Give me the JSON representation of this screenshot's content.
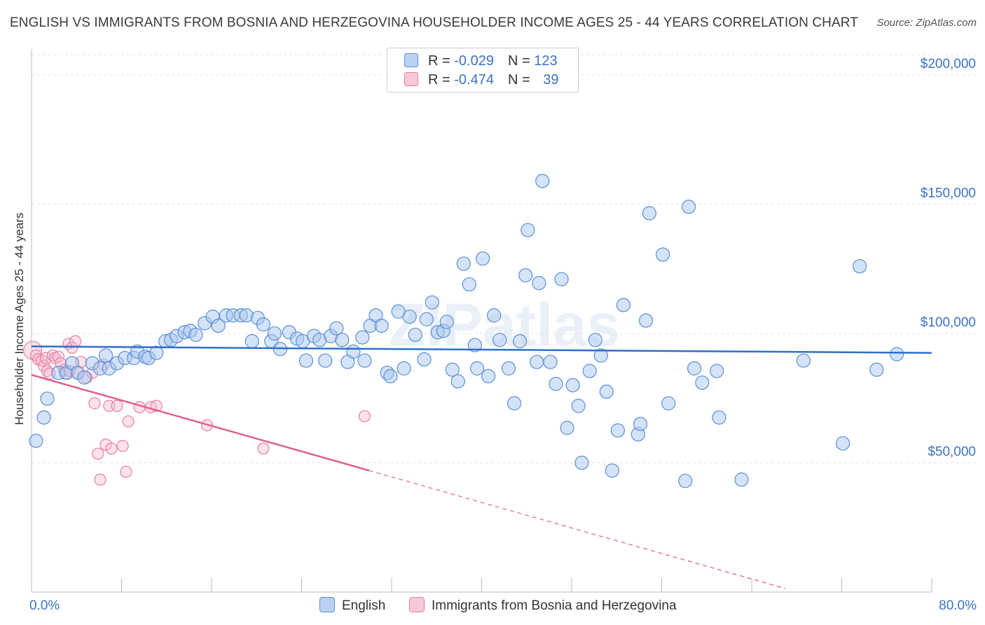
{
  "title": "ENGLISH VS IMMIGRANTS FROM BOSNIA AND HERZEGOVINA HOUSEHOLDER INCOME AGES 25 - 44 YEARS CORRELATION CHART",
  "source": "Source: ZipAtlas.com",
  "watermark": "ZIPatlas",
  "legend": {
    "rows": [
      {
        "r_label": "R = ",
        "r_value": "-0.029",
        "n_label": "N = ",
        "n_value": "123"
      },
      {
        "r_label": "R = ",
        "r_value": "-0.474",
        "n_label": "N = ",
        "n_value": "39"
      }
    ]
  },
  "bottom_legend": [
    "English",
    "Immigrants from Bosnia and Herzegovina"
  ],
  "colors": {
    "english_fill": "#a9c8f0",
    "english_stroke": "#5a8fd6",
    "english_line": "#2f6fcc",
    "bosnia_fill": "#f7bfd2",
    "bosnia_stroke": "#e77fa2",
    "bosnia_line": "#e0608e",
    "tick_label": "#3b73c7",
    "grid": "#e3e3e3"
  },
  "chart_data": {
    "type": "scatter",
    "title": "ENGLISH VS IMMIGRANTS FROM BOSNIA AND HERZEGOVINA HOUSEHOLDER INCOME AGES 25 - 44 YEARS CORRELATION CHART",
    "xlabel": "",
    "ylabel": "Householder Income Ages 25 - 44 years",
    "xlim": [
      0,
      80
    ],
    "ylim": [
      0,
      210000
    ],
    "x_tick_labels": [
      "0.0%",
      "80.0%"
    ],
    "y_ticks": [
      50000,
      100000,
      150000,
      200000
    ],
    "y_tick_labels": [
      "$50,000",
      "$100,000",
      "$150,000",
      "$200,000"
    ],
    "grid": true,
    "legend_position": "top-center",
    "series": [
      {
        "name": "English",
        "points": [
          [
            0.4,
            58500
          ],
          [
            1.1,
            67500
          ],
          [
            1.4,
            74800
          ],
          [
            2.4,
            84800
          ],
          [
            3.1,
            84800
          ],
          [
            3.6,
            88500
          ],
          [
            4.1,
            84800
          ],
          [
            4.7,
            83000
          ],
          [
            5.4,
            88500
          ],
          [
            6.1,
            86500
          ],
          [
            6.6,
            91500
          ],
          [
            6.9,
            86500
          ],
          [
            7.6,
            88500
          ],
          [
            8.3,
            90500
          ],
          [
            9.1,
            90500
          ],
          [
            9.4,
            93000
          ],
          [
            10.1,
            91000
          ],
          [
            10.4,
            90500
          ],
          [
            11.1,
            92500
          ],
          [
            11.9,
            97000
          ],
          [
            12.4,
            97500
          ],
          [
            12.9,
            99000
          ],
          [
            13.6,
            100500
          ],
          [
            14.1,
            101000
          ],
          [
            14.6,
            99500
          ],
          [
            15.4,
            104000
          ],
          [
            16.1,
            106500
          ],
          [
            16.6,
            103000
          ],
          [
            17.3,
            107000
          ],
          [
            17.9,
            107000
          ],
          [
            18.6,
            107000
          ],
          [
            19.1,
            107000
          ],
          [
            19.6,
            97000
          ],
          [
            20.1,
            106000
          ],
          [
            20.6,
            103500
          ],
          [
            21.3,
            97000
          ],
          [
            21.6,
            100000
          ],
          [
            22.1,
            94000
          ],
          [
            22.9,
            100500
          ],
          [
            23.6,
            98000
          ],
          [
            24.1,
            97000
          ],
          [
            24.4,
            89500
          ],
          [
            25.1,
            99000
          ],
          [
            25.6,
            97500
          ],
          [
            26.1,
            89500
          ],
          [
            26.6,
            99000
          ],
          [
            27.1,
            102000
          ],
          [
            27.6,
            97500
          ],
          [
            28.1,
            89000
          ],
          [
            28.6,
            93000
          ],
          [
            29.4,
            98500
          ],
          [
            29.6,
            89500
          ],
          [
            30.1,
            103000
          ],
          [
            30.6,
            107000
          ],
          [
            31.1,
            103000
          ],
          [
            31.6,
            84800
          ],
          [
            31.9,
            83500
          ],
          [
            32.6,
            108500
          ],
          [
            33.1,
            86500
          ],
          [
            33.6,
            106500
          ],
          [
            34.1,
            99500
          ],
          [
            34.9,
            90000
          ],
          [
            35.1,
            105500
          ],
          [
            35.6,
            112000
          ],
          [
            36.1,
            100500
          ],
          [
            36.6,
            101000
          ],
          [
            36.9,
            104500
          ],
          [
            37.4,
            86000
          ],
          [
            37.9,
            81500
          ],
          [
            38.4,
            127000
          ],
          [
            38.9,
            119000
          ],
          [
            39.4,
            95500
          ],
          [
            39.6,
            86500
          ],
          [
            40.1,
            129000
          ],
          [
            40.6,
            83500
          ],
          [
            41.1,
            107000
          ],
          [
            41.6,
            97500
          ],
          [
            42.4,
            86500
          ],
          [
            42.9,
            73000
          ],
          [
            43.4,
            97000
          ],
          [
            43.9,
            122500
          ],
          [
            44.1,
            140000
          ],
          [
            44.9,
            89000
          ],
          [
            45.1,
            119500
          ],
          [
            45.4,
            159000
          ],
          [
            46.1,
            89000
          ],
          [
            46.6,
            80500
          ],
          [
            47.1,
            121000
          ],
          [
            47.6,
            63500
          ],
          [
            48.1,
            80000
          ],
          [
            48.6,
            72000
          ],
          [
            48.9,
            50000
          ],
          [
            49.6,
            85500
          ],
          [
            50.1,
            97500
          ],
          [
            50.6,
            91500
          ],
          [
            51.1,
            77500
          ],
          [
            51.6,
            47000
          ],
          [
            52.1,
            62500
          ],
          [
            52.6,
            111000
          ],
          [
            53.9,
            61000
          ],
          [
            54.1,
            65000
          ],
          [
            54.6,
            105000
          ],
          [
            54.9,
            146500
          ],
          [
            56.1,
            130500
          ],
          [
            56.6,
            73000
          ],
          [
            58.1,
            43000
          ],
          [
            58.4,
            149000
          ],
          [
            58.9,
            86500
          ],
          [
            59.6,
            81000
          ],
          [
            60.9,
            85500
          ],
          [
            61.1,
            67500
          ],
          [
            63.1,
            43500
          ],
          [
            68.6,
            89500
          ],
          [
            72.1,
            57500
          ],
          [
            73.6,
            126000
          ],
          [
            75.1,
            86000
          ],
          [
            76.9,
            92000
          ]
        ]
      },
      {
        "name": "Immigrants from Bosnia and Herzegovina",
        "points": [
          [
            0.1,
            93500
          ],
          [
            0.4,
            91500
          ],
          [
            0.6,
            90000
          ],
          [
            0.9,
            89500
          ],
          [
            1.1,
            87500
          ],
          [
            1.3,
            90500
          ],
          [
            1.4,
            85500
          ],
          [
            1.6,
            84500
          ],
          [
            1.9,
            91500
          ],
          [
            2.1,
            90500
          ],
          [
            2.4,
            91000
          ],
          [
            2.6,
            88500
          ],
          [
            2.9,
            86000
          ],
          [
            3.1,
            84500
          ],
          [
            3.3,
            96000
          ],
          [
            3.4,
            85500
          ],
          [
            3.6,
            94500
          ],
          [
            3.9,
            97000
          ],
          [
            4.1,
            85000
          ],
          [
            4.4,
            89000
          ],
          [
            4.9,
            83000
          ],
          [
            5.4,
            84800
          ],
          [
            5.6,
            73000
          ],
          [
            5.9,
            53500
          ],
          [
            6.1,
            43500
          ],
          [
            6.4,
            88000
          ],
          [
            6.6,
            57000
          ],
          [
            6.9,
            72000
          ],
          [
            7.1,
            55500
          ],
          [
            7.6,
            72000
          ],
          [
            8.1,
            56500
          ],
          [
            8.4,
            46500
          ],
          [
            8.6,
            66000
          ],
          [
            9.6,
            71500
          ],
          [
            10.6,
            71500
          ],
          [
            11.1,
            72000
          ],
          [
            15.6,
            64500
          ],
          [
            20.6,
            55500
          ],
          [
            29.6,
            68000
          ]
        ]
      }
    ],
    "trend_lines": [
      {
        "name": "English",
        "x": [
          0,
          80
        ],
        "y": [
          95000,
          92500
        ]
      },
      {
        "name": "Immigrants from Bosnia and Herzegovina",
        "x": [
          0,
          30
        ],
        "y": [
          84000,
          47000
        ],
        "dashed_extension_to_x": 67
      }
    ]
  }
}
